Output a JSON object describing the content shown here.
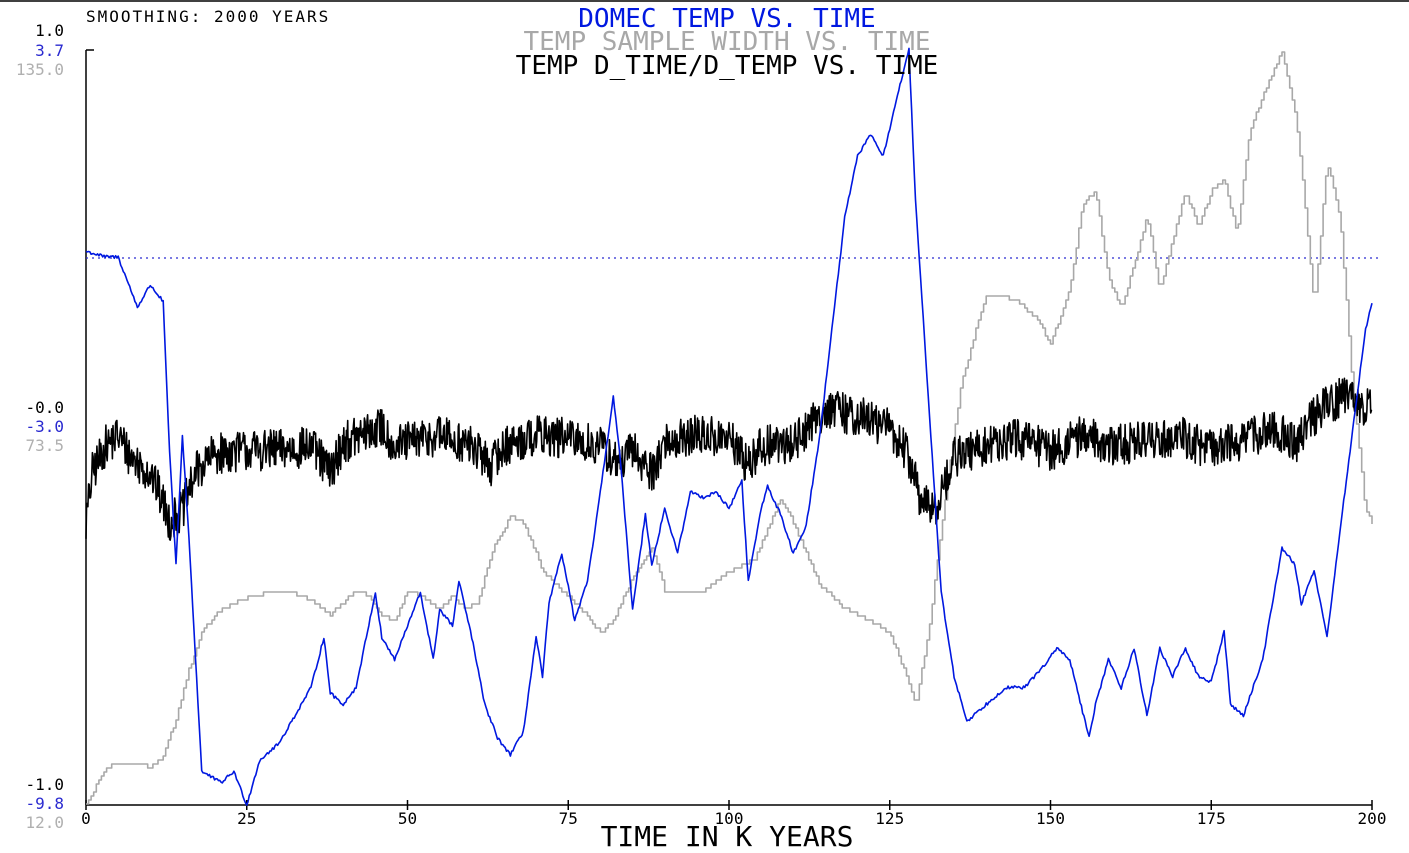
{
  "header": {
    "smoothing_label": "SMOOTHING: 2000 YEARS"
  },
  "titles": [
    {
      "text": "DOMEC TEMP VS. TIME",
      "color": "#0018e0"
    },
    {
      "text": "TEMP SAMPLE WIDTH VS. TIME",
      "color": "#a8a8a8"
    },
    {
      "text": "TEMP D_TIME/D_TEMP VS. TIME",
      "color": "#000000"
    }
  ],
  "xaxis": {
    "label": "TIME IN K YEARS",
    "ticks": [
      "0",
      "25",
      "50",
      "75",
      "100",
      "125",
      "150",
      "175",
      "200"
    ],
    "range": [
      0,
      200
    ]
  },
  "yaxes": {
    "black": {
      "top": "1.0",
      "mid": "-0.0",
      "bottom": "-1.0",
      "color": "#000000"
    },
    "blue": {
      "top": "3.7",
      "mid": "-3.0",
      "bottom": "-9.8",
      "color": "#2a2ad0"
    },
    "gray": {
      "top": "135.0",
      "mid": "73.5",
      "bottom": "12.0",
      "color": "#b0b0b0"
    }
  },
  "chart_data": {
    "type": "line",
    "xlim": [
      0,
      200
    ],
    "reference_line": {
      "series": "DOMEC TEMP",
      "value": 0,
      "style": "dotted",
      "color": "#2a2ad0"
    },
    "series": [
      {
        "name": "DOMEC TEMP",
        "color": "#0018e0",
        "ylim": [
          -9.8,
          3.7
        ],
        "x": [
          0,
          3,
          5,
          8,
          10,
          12,
          13,
          14,
          15,
          16,
          18,
          21,
          23,
          25,
          27,
          30,
          32,
          35,
          37,
          38,
          40,
          42,
          45,
          46,
          48,
          50,
          52,
          54,
          55,
          57,
          58,
          60,
          62,
          64,
          66,
          68,
          70,
          71,
          72,
          74,
          76,
          78,
          80,
          82,
          83,
          85,
          87,
          88,
          90,
          92,
          94,
          96,
          98,
          100,
          102,
          103,
          105,
          106,
          108,
          110,
          112,
          114,
          116,
          118,
          120,
          122,
          124,
          126,
          128,
          129,
          131,
          133,
          135,
          137,
          140,
          143,
          146,
          149,
          151,
          153,
          156,
          157,
          159,
          161,
          163,
          165,
          167,
          169,
          171,
          173,
          175,
          177,
          178,
          180,
          183,
          186,
          188,
          189,
          191,
          193,
          196,
          199,
          200
        ],
        "y": [
          0.1,
          0.0,
          0.0,
          -0.9,
          -0.5,
          -0.8,
          -3.5,
          -5.5,
          -3.2,
          -5.0,
          -9.2,
          -9.4,
          -9.2,
          -9.8,
          -9.0,
          -8.7,
          -8.3,
          -7.7,
          -6.8,
          -7.8,
          -8.0,
          -7.7,
          -6.0,
          -6.8,
          -7.2,
          -6.6,
          -6.0,
          -7.2,
          -6.3,
          -6.6,
          -5.8,
          -6.8,
          -8.0,
          -8.6,
          -8.9,
          -8.5,
          -6.8,
          -7.5,
          -6.2,
          -5.3,
          -6.5,
          -5.8,
          -4.2,
          -2.5,
          -3.5,
          -6.3,
          -4.6,
          -5.5,
          -4.5,
          -5.3,
          -4.2,
          -4.3,
          -4.2,
          -4.5,
          -4.0,
          -5.8,
          -4.5,
          -4.1,
          -4.6,
          -5.3,
          -4.8,
          -3.3,
          -1.3,
          0.7,
          1.8,
          2.2,
          1.8,
          2.8,
          3.7,
          1.0,
          -2.5,
          -6.0,
          -7.5,
          -8.3,
          -8.0,
          -7.7,
          -7.7,
          -7.3,
          -7.0,
          -7.2,
          -8.6,
          -8.0,
          -7.2,
          -7.7,
          -7.0,
          -8.2,
          -7.0,
          -7.5,
          -7.0,
          -7.5,
          -7.6,
          -6.7,
          -8.0,
          -8.2,
          -7.2,
          -5.2,
          -5.5,
          -6.2,
          -5.6,
          -6.8,
          -4.0,
          -1.3,
          -0.8
        ]
      },
      {
        "name": "TEMP SAMPLE WIDTH",
        "color": "#a8a8a8",
        "ylim": [
          12.0,
          135.0
        ],
        "x": [
          0,
          3,
          5,
          8,
          10,
          12,
          14,
          16,
          18,
          20,
          23,
          26,
          30,
          34,
          38,
          40,
          42,
          44,
          46,
          48,
          50,
          52,
          55,
          57,
          59,
          61,
          63,
          66,
          68,
          70,
          71,
          73,
          75,
          77,
          80,
          82,
          85,
          88,
          90,
          93,
          96,
          100,
          104,
          106,
          108,
          110,
          114,
          118,
          122,
          125,
          128,
          129,
          131,
          134,
          136,
          138,
          140,
          142,
          145,
          148,
          150,
          153,
          155,
          157,
          159,
          161,
          163,
          165,
          167,
          169,
          171,
          173,
          175,
          177,
          179,
          181,
          184,
          186,
          188,
          189,
          191,
          193,
          195,
          197,
          199,
          200
        ],
        "y": [
          12.0,
          18.0,
          19.0,
          19.0,
          18.0,
          20.0,
          26.0,
          34.0,
          40.0,
          43.0,
          45.0,
          46.0,
          47.0,
          46.0,
          43.0,
          45.0,
          47.0,
          46.0,
          43.0,
          42.0,
          47.0,
          46.0,
          44.0,
          46.0,
          44.0,
          45.0,
          53.0,
          59.0,
          58.0,
          53.0,
          50.0,
          48.0,
          46.0,
          44.0,
          40.0,
          42.0,
          49.0,
          54.0,
          47.0,
          47.0,
          47.0,
          50.0,
          52.0,
          57.0,
          62.0,
          58.0,
          48.0,
          44.0,
          42.0,
          40.0,
          32.0,
          28.0,
          40.0,
          65.0,
          80.0,
          88.0,
          95.0,
          95.0,
          94.0,
          91.0,
          87.0,
          96.0,
          110.0,
          112.0,
          98.0,
          93.0,
          100.0,
          108.0,
          96.0,
          104.0,
          112.0,
          106.0,
          112.0,
          114.0,
          105.0,
          122.0,
          130.0,
          135.0,
          125.0,
          116.0,
          93.0,
          117.0,
          108.0,
          80.0,
          60.0,
          58.0
        ]
      },
      {
        "name": "TEMP D_TIME/D_TEMP",
        "color": "#000000",
        "ylim": [
          -1.0,
          1.0
        ],
        "x": [
          0,
          1,
          3,
          5,
          7,
          10,
          12,
          13,
          15,
          17,
          20,
          25,
          30,
          35,
          38,
          40,
          43,
          46,
          48,
          50,
          55,
          60,
          63,
          65,
          70,
          75,
          80,
          83,
          85,
          88,
          90,
          95,
          100,
          103,
          105,
          110,
          115,
          120,
          125,
          128,
          130,
          132,
          135,
          140,
          145,
          150,
          155,
          160,
          165,
          170,
          175,
          180,
          185,
          188,
          190,
          195,
          200
        ],
        "y": [
          -0.25,
          -0.12,
          -0.05,
          -0.02,
          -0.08,
          -0.12,
          -0.2,
          -0.25,
          -0.22,
          -0.12,
          -0.07,
          -0.06,
          -0.06,
          -0.05,
          -0.12,
          -0.04,
          -0.02,
          0.0,
          -0.05,
          -0.04,
          -0.02,
          -0.05,
          -0.1,
          -0.05,
          -0.02,
          -0.03,
          -0.05,
          -0.1,
          -0.06,
          -0.12,
          -0.04,
          -0.02,
          -0.03,
          -0.1,
          -0.05,
          -0.04,
          0.05,
          0.03,
          0.0,
          -0.08,
          -0.2,
          -0.22,
          -0.08,
          -0.05,
          -0.03,
          -0.06,
          -0.02,
          -0.05,
          -0.03,
          -0.02,
          -0.06,
          -0.03,
          0.0,
          -0.05,
          0.02,
          0.08,
          0.05
        ]
      }
    ]
  }
}
